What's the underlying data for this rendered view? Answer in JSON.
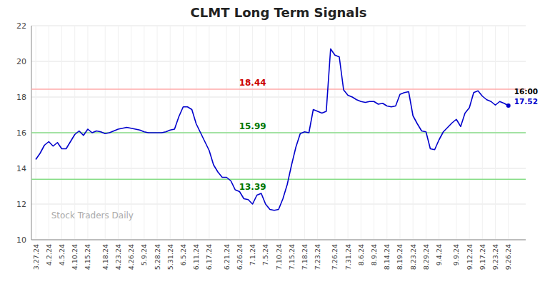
{
  "chart_data": {
    "type": "line",
    "title": "CLMT Long Term Signals",
    "categories": [
      "3.27.24",
      null,
      null,
      "4.2.24",
      null,
      null,
      "4.5.24",
      null,
      null,
      "4.10.24",
      null,
      null,
      "4.15.24",
      null,
      null,
      null,
      "4.18.24",
      null,
      null,
      "4.23.24",
      null,
      null,
      "4.26.24",
      null,
      null,
      "5.9.24",
      null,
      null,
      "5.28.24",
      null,
      null,
      "5.31.24",
      null,
      null,
      "6.5.24",
      null,
      null,
      "6.11.24",
      null,
      null,
      "6.17.24",
      null,
      null,
      null,
      "6.21.24",
      null,
      null,
      "6.26.24",
      null,
      null,
      "7.1.24",
      null,
      null,
      "7.5.24",
      null,
      null,
      "7.10.24",
      null,
      null,
      "7.15.24",
      null,
      null,
      "7.18.24",
      null,
      null,
      "7.23.24",
      null,
      null,
      null,
      "7.26.24",
      null,
      null,
      "7.31.24",
      null,
      null,
      "8.6.24",
      null,
      null,
      "8.9.24",
      null,
      null,
      "8.14.24",
      null,
      null,
      "8.19.24",
      null,
      null,
      "8.23.24",
      null,
      null,
      "8.29.24",
      null,
      null,
      "9.4.24",
      null,
      null,
      null,
      "9.9.24",
      null,
      null,
      "9.12.24",
      null,
      null,
      "9.17.24",
      null,
      null,
      "9.23.24",
      null,
      null,
      "9.26.24"
    ],
    "values": [
      14.5,
      14.85,
      15.3,
      15.5,
      15.25,
      15.45,
      15.1,
      15.1,
      15.5,
      15.9,
      16.1,
      15.85,
      16.2,
      16.0,
      16.1,
      16.05,
      15.95,
      16.0,
      16.1,
      16.2,
      16.25,
      16.3,
      16.25,
      16.2,
      16.15,
      16.05,
      16.0,
      16.0,
      16.0,
      16.0,
      16.05,
      16.15,
      16.2,
      16.9,
      17.45,
      17.45,
      17.3,
      16.5,
      16.0,
      15.5,
      15.0,
      14.2,
      13.8,
      13.5,
      13.5,
      13.3,
      12.8,
      12.7,
      12.3,
      12.25,
      12.0,
      12.5,
      12.6,
      12.0,
      11.7,
      11.65,
      11.7,
      12.3,
      13.1,
      14.2,
      15.2,
      15.95,
      16.05,
      16.0,
      17.3,
      17.2,
      17.1,
      17.2,
      20.7,
      20.35,
      20.25,
      18.4,
      18.1,
      18.0,
      17.85,
      17.75,
      17.7,
      17.75,
      17.75,
      17.6,
      17.65,
      17.5,
      17.45,
      17.5,
      18.15,
      18.25,
      18.3,
      16.95,
      16.5,
      16.1,
      16.05,
      15.1,
      15.05,
      15.6,
      16.05,
      16.3,
      16.55,
      16.75,
      16.35,
      17.1,
      17.4,
      18.25,
      18.35,
      18.05,
      17.85,
      17.75,
      17.55,
      17.75,
      17.65,
      17.52
    ],
    "color": "#0000cc",
    "ylim": [
      10,
      22
    ],
    "yticks": [
      10,
      12,
      14,
      16,
      18,
      20,
      22
    ],
    "grid": true,
    "reference_lines": [
      {
        "value": 18.44,
        "color": "#ffaaaa",
        "label": "18.44",
        "label_color": "#cc0000"
      },
      {
        "value": 16.0,
        "color": "#88dd88",
        "label": "15.99",
        "label_color": "#007700"
      },
      {
        "value": 13.39,
        "color": "#88dd88",
        "label": "13.39",
        "label_color": "#007700"
      }
    ],
    "annotations": [
      {
        "text": "16:00",
        "color": "#000000"
      },
      {
        "text": "17.52",
        "color": "#0000cc"
      }
    ],
    "watermark": "Stock Traders Daily"
  }
}
